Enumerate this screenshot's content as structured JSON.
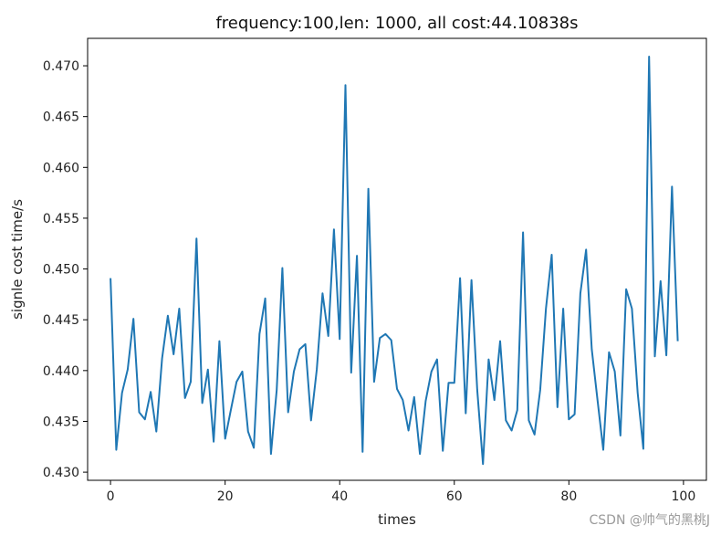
{
  "chart_data": {
    "type": "line",
    "title": "frequency:100,len: 1000, all cost:44.10838s",
    "xlabel": "times",
    "ylabel": "signle cost time/s",
    "xlim": [
      -4,
      104
    ],
    "ylim": [
      0.4292,
      0.4727
    ],
    "xticks": [
      0,
      20,
      40,
      60,
      80,
      100
    ],
    "yticks": [
      0.43,
      0.435,
      0.44,
      0.445,
      0.45,
      0.455,
      0.46,
      0.465,
      0.47
    ],
    "ytick_labels": [
      "0.430",
      "0.435",
      "0.440",
      "0.445",
      "0.450",
      "0.455",
      "0.460",
      "0.465",
      "0.470"
    ],
    "grid": false,
    "series": [
      {
        "color": "#1f77b4",
        "x": [
          0,
          1,
          2,
          3,
          4,
          5,
          6,
          7,
          8,
          9,
          10,
          11,
          12,
          13,
          14,
          15,
          16,
          17,
          18,
          19,
          20,
          21,
          22,
          23,
          24,
          25,
          26,
          27,
          28,
          29,
          30,
          31,
          32,
          33,
          34,
          35,
          36,
          37,
          38,
          39,
          40,
          41,
          42,
          43,
          44,
          45,
          46,
          47,
          48,
          49,
          50,
          51,
          52,
          53,
          54,
          55,
          56,
          57,
          58,
          59,
          60,
          61,
          62,
          63,
          64,
          65,
          66,
          67,
          68,
          69,
          70,
          71,
          72,
          73,
          74,
          75,
          76,
          77,
          78,
          79,
          80,
          81,
          82,
          83,
          84,
          85,
          86,
          87,
          88,
          89,
          90,
          91,
          92,
          93,
          94,
          95,
          96,
          97,
          98,
          99
        ],
        "values": [
          0.4491,
          0.4322,
          0.4378,
          0.4401,
          0.4451,
          0.4359,
          0.4352,
          0.4379,
          0.434,
          0.4412,
          0.4454,
          0.4416,
          0.4461,
          0.4373,
          0.4389,
          0.453,
          0.4368,
          0.4401,
          0.433,
          0.4429,
          0.4333,
          0.4361,
          0.4389,
          0.4399,
          0.434,
          0.4324,
          0.4436,
          0.4471,
          0.4318,
          0.4381,
          0.4501,
          0.4359,
          0.4399,
          0.4421,
          0.4426,
          0.4351,
          0.4401,
          0.4476,
          0.4434,
          0.4539,
          0.4431,
          0.4681,
          0.4398,
          0.4513,
          0.432,
          0.4579,
          0.4389,
          0.4432,
          0.4436,
          0.443,
          0.4382,
          0.4371,
          0.4341,
          0.4374,
          0.4318,
          0.437,
          0.4399,
          0.4411,
          0.4321,
          0.4388,
          0.4388,
          0.4491,
          0.4358,
          0.4489,
          0.4381,
          0.4308,
          0.4411,
          0.4371,
          0.4429,
          0.4351,
          0.4341,
          0.4361,
          0.4536,
          0.4351,
          0.4337,
          0.4381,
          0.4461,
          0.4514,
          0.4364,
          0.4461,
          0.4352,
          0.4357,
          0.4476,
          0.4519,
          0.4421,
          0.4371,
          0.4322,
          0.4418,
          0.4399,
          0.4336,
          0.448,
          0.4461,
          0.4378,
          0.4323,
          0.4709,
          0.4414,
          0.4488,
          0.4415,
          0.4581,
          0.4429
        ]
      }
    ]
  },
  "watermark": "CSDN @帅气的黑桃J"
}
